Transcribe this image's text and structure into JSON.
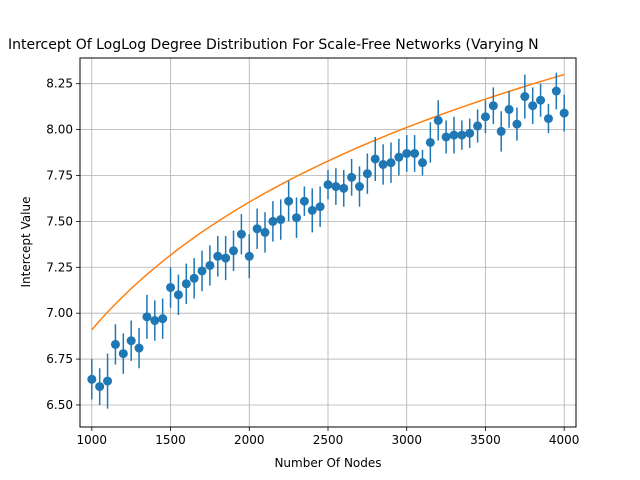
{
  "chart_data": {
    "type": "scatter",
    "title": "Intercept Of LogLog Degree Distribution For Scale-Free Networks (Varying N",
    "xlabel": "Number Of Nodes",
    "ylabel": "Intercept Value",
    "xlim": [
      925,
      4075
    ],
    "ylim": [
      6.38,
      8.39
    ],
    "grid": true,
    "xticks": [
      1000,
      1500,
      2000,
      2500,
      3000,
      3500,
      4000
    ],
    "xtick_labels": [
      "1000",
      "1500",
      "2000",
      "2500",
      "3000",
      "3500",
      "4000"
    ],
    "yticks": [
      6.5,
      6.75,
      7.0,
      7.25,
      7.5,
      7.75,
      8.0,
      8.25
    ],
    "ytick_labels": [
      "6.50",
      "6.75",
      "7.00",
      "7.25",
      "7.50",
      "7.75",
      "8.00",
      "8.25"
    ],
    "series": [
      {
        "kind": "errorbar",
        "color": "#1f77b4",
        "x": [
          1000,
          1050,
          1100,
          1150,
          1200,
          1250,
          1300,
          1350,
          1400,
          1450,
          1500,
          1550,
          1600,
          1650,
          1700,
          1750,
          1800,
          1850,
          1900,
          1950,
          2000,
          2050,
          2100,
          2150,
          2200,
          2250,
          2300,
          2350,
          2400,
          2450,
          2500,
          2550,
          2600,
          2650,
          2700,
          2750,
          2800,
          2850,
          2900,
          2950,
          3000,
          3050,
          3100,
          3150,
          3200,
          3250,
          3300,
          3350,
          3400,
          3450,
          3500,
          3550,
          3600,
          3650,
          3700,
          3750,
          3800,
          3850,
          3900,
          3950,
          4000
        ],
        "y": [
          6.64,
          6.6,
          6.63,
          6.83,
          6.78,
          6.85,
          6.81,
          6.98,
          6.96,
          6.97,
          7.14,
          7.1,
          7.16,
          7.19,
          7.23,
          7.26,
          7.31,
          7.3,
          7.34,
          7.43,
          7.31,
          7.46,
          7.44,
          7.5,
          7.51,
          7.61,
          7.52,
          7.61,
          7.56,
          7.58,
          7.7,
          7.69,
          7.68,
          7.74,
          7.69,
          7.76,
          7.84,
          7.81,
          7.82,
          7.85,
          7.87,
          7.87,
          7.82,
          7.93,
          8.05,
          7.96,
          7.97,
          7.97,
          7.98,
          8.02,
          8.07,
          8.13,
          7.99,
          8.11,
          8.03,
          8.18,
          8.13,
          8.16,
          8.06,
          8.21,
          8.09
        ],
        "yerr": [
          0.11,
          0.1,
          0.15,
          0.11,
          0.11,
          0.11,
          0.11,
          0.12,
          0.11,
          0.11,
          0.11,
          0.11,
          0.11,
          0.11,
          0.11,
          0.11,
          0.11,
          0.12,
          0.11,
          0.11,
          0.12,
          0.11,
          0.11,
          0.11,
          0.11,
          0.11,
          0.11,
          0.08,
          0.12,
          0.11,
          0.08,
          0.1,
          0.1,
          0.1,
          0.11,
          0.11,
          0.12,
          0.11,
          0.11,
          0.1,
          0.1,
          0.1,
          0.07,
          0.11,
          0.11,
          0.09,
          0.1,
          0.08,
          0.08,
          0.09,
          0.09,
          0.1,
          0.11,
          0.1,
          0.09,
          0.12,
          0.1,
          0.09,
          0.08,
          0.1,
          0.1
        ]
      },
      {
        "kind": "line",
        "color": "#ff7f0e",
        "x": [
          1000,
          1250,
          1500,
          1750,
          2000,
          2250,
          2500,
          2750,
          3000,
          3250,
          3500,
          3750,
          4000
        ],
        "y": [
          6.91,
          7.12,
          7.3,
          7.45,
          7.58,
          7.71,
          7.82,
          7.92,
          8.01,
          8.09,
          8.16,
          8.23,
          8.3
        ]
      }
    ]
  }
}
